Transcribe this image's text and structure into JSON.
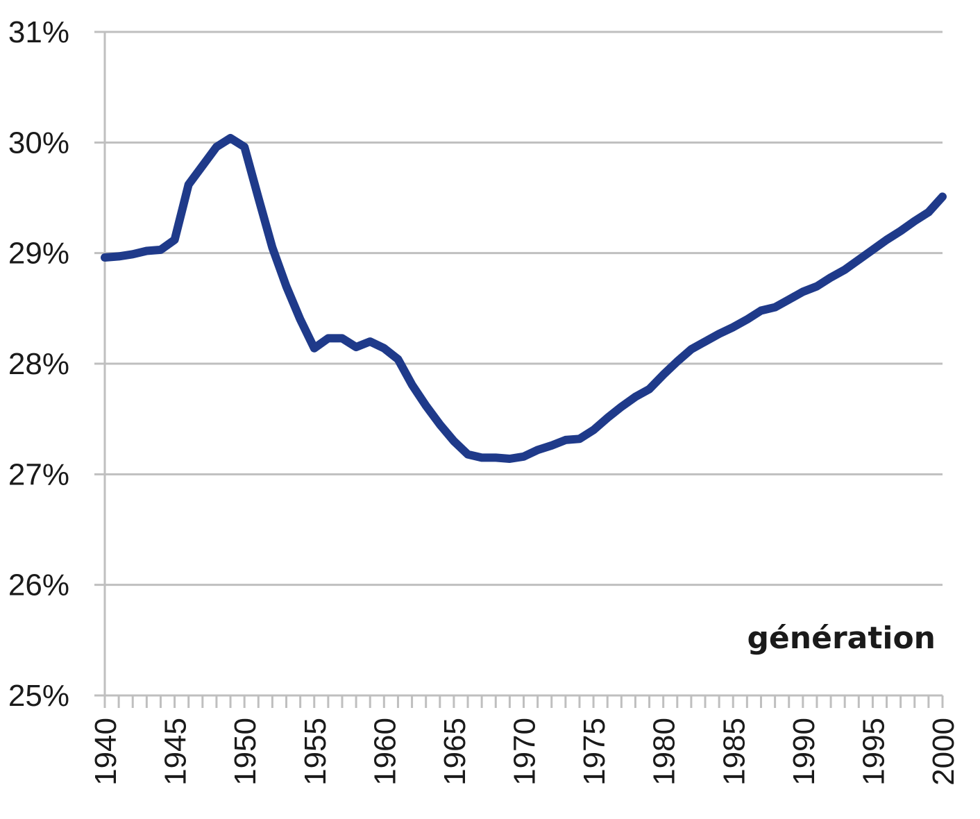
{
  "chart_data": {
    "type": "line",
    "xlabel": "génération",
    "ylabel": "",
    "xlim": [
      1940,
      2000
    ],
    "ylim": [
      0.25,
      0.31
    ],
    "x_ticks": [
      "1940",
      "1945",
      "1950",
      "1955",
      "1960",
      "1965",
      "1970",
      "1975",
      "1980",
      "1985",
      "1990",
      "1995",
      "2000"
    ],
    "y_ticks": [
      "25%",
      "26%",
      "27%",
      "28%",
      "29%",
      "30%",
      "31%"
    ],
    "grid": true,
    "legend": "none",
    "series_color": "#1f3a8a",
    "series": [
      {
        "x": [
          1940,
          1941,
          1942,
          1943,
          1944,
          1945,
          1946,
          1947,
          1948,
          1949,
          1950,
          1951,
          1952,
          1953,
          1954,
          1955,
          1956,
          1957,
          1958,
          1959,
          1960,
          1961,
          1962,
          1963,
          1964,
          1965,
          1966,
          1967,
          1968,
          1969,
          1970,
          1971,
          1972,
          1973,
          1974,
          1975,
          1976,
          1977,
          1978,
          1979,
          1980,
          1981,
          1982,
          1983,
          1984,
          1985,
          1986,
          1987,
          1988,
          1989,
          1990,
          1991,
          1992,
          1993,
          1994,
          1995,
          1996,
          1997,
          1998,
          1999,
          2000
        ],
        "values": [
          0.2896,
          0.2897,
          0.2899,
          0.2902,
          0.2903,
          0.2912,
          0.2962,
          0.2979,
          0.2996,
          0.3004,
          0.2996,
          0.295,
          0.2905,
          0.287,
          0.284,
          0.2814,
          0.2823,
          0.2823,
          0.2815,
          0.282,
          0.2814,
          0.2804,
          0.2781,
          0.2762,
          0.2745,
          0.273,
          0.2718,
          0.2715,
          0.2715,
          0.2714,
          0.2716,
          0.2722,
          0.2726,
          0.2731,
          0.2732,
          0.274,
          0.2751,
          0.2761,
          0.277,
          0.2777,
          0.279,
          0.2802,
          0.2813,
          0.282,
          0.2827,
          0.2833,
          0.284,
          0.2848,
          0.2851,
          0.2858,
          0.2865,
          0.287,
          0.2878,
          0.2885,
          0.2894,
          0.2903,
          0.2912,
          0.292,
          0.2929,
          0.2937,
          0.2951
        ]
      }
    ]
  }
}
